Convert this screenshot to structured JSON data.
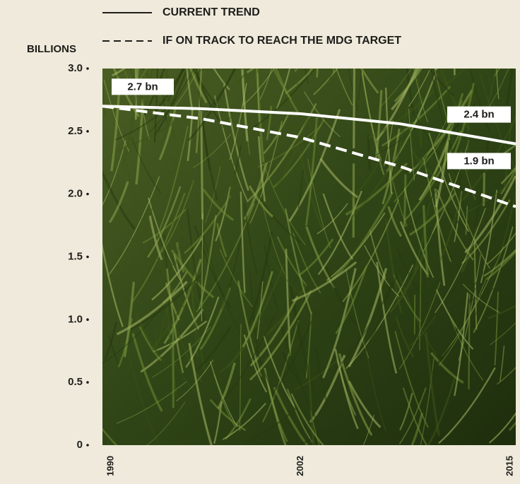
{
  "chart_data": {
    "type": "line",
    "y_label": "BILLIONS",
    "x": [
      1990,
      1996,
      2002,
      2008,
      2015
    ],
    "xlim": [
      1990,
      2015
    ],
    "xticks": [
      1990,
      2002,
      2015
    ],
    "ylim": [
      0,
      3
    ],
    "yticks": [
      0,
      0.5,
      {
        "value": 1,
        "label": "1.0"
      },
      1.5,
      {
        "value": 2,
        "label": "2.0"
      },
      2.5,
      {
        "value": 3,
        "label": "3.0"
      }
    ],
    "series": [
      {
        "name": "CURRENT TREND",
        "color": "#ffffff",
        "dashed": false,
        "values": [
          2.7,
          2.68,
          2.64,
          2.56,
          2.4
        ],
        "value_labels": [
          "2.7 bn",
          null,
          null,
          null,
          "2.4 bn"
        ]
      },
      {
        "name": "IF ON TRACK TO REACH THE MDG TARGET",
        "color": "#ffffff",
        "dashed": true,
        "values": [
          2.7,
          2.6,
          2.45,
          2.22,
          1.9
        ],
        "value_labels": [
          null,
          null,
          null,
          null,
          "1.9 bn"
        ]
      }
    ]
  }
}
